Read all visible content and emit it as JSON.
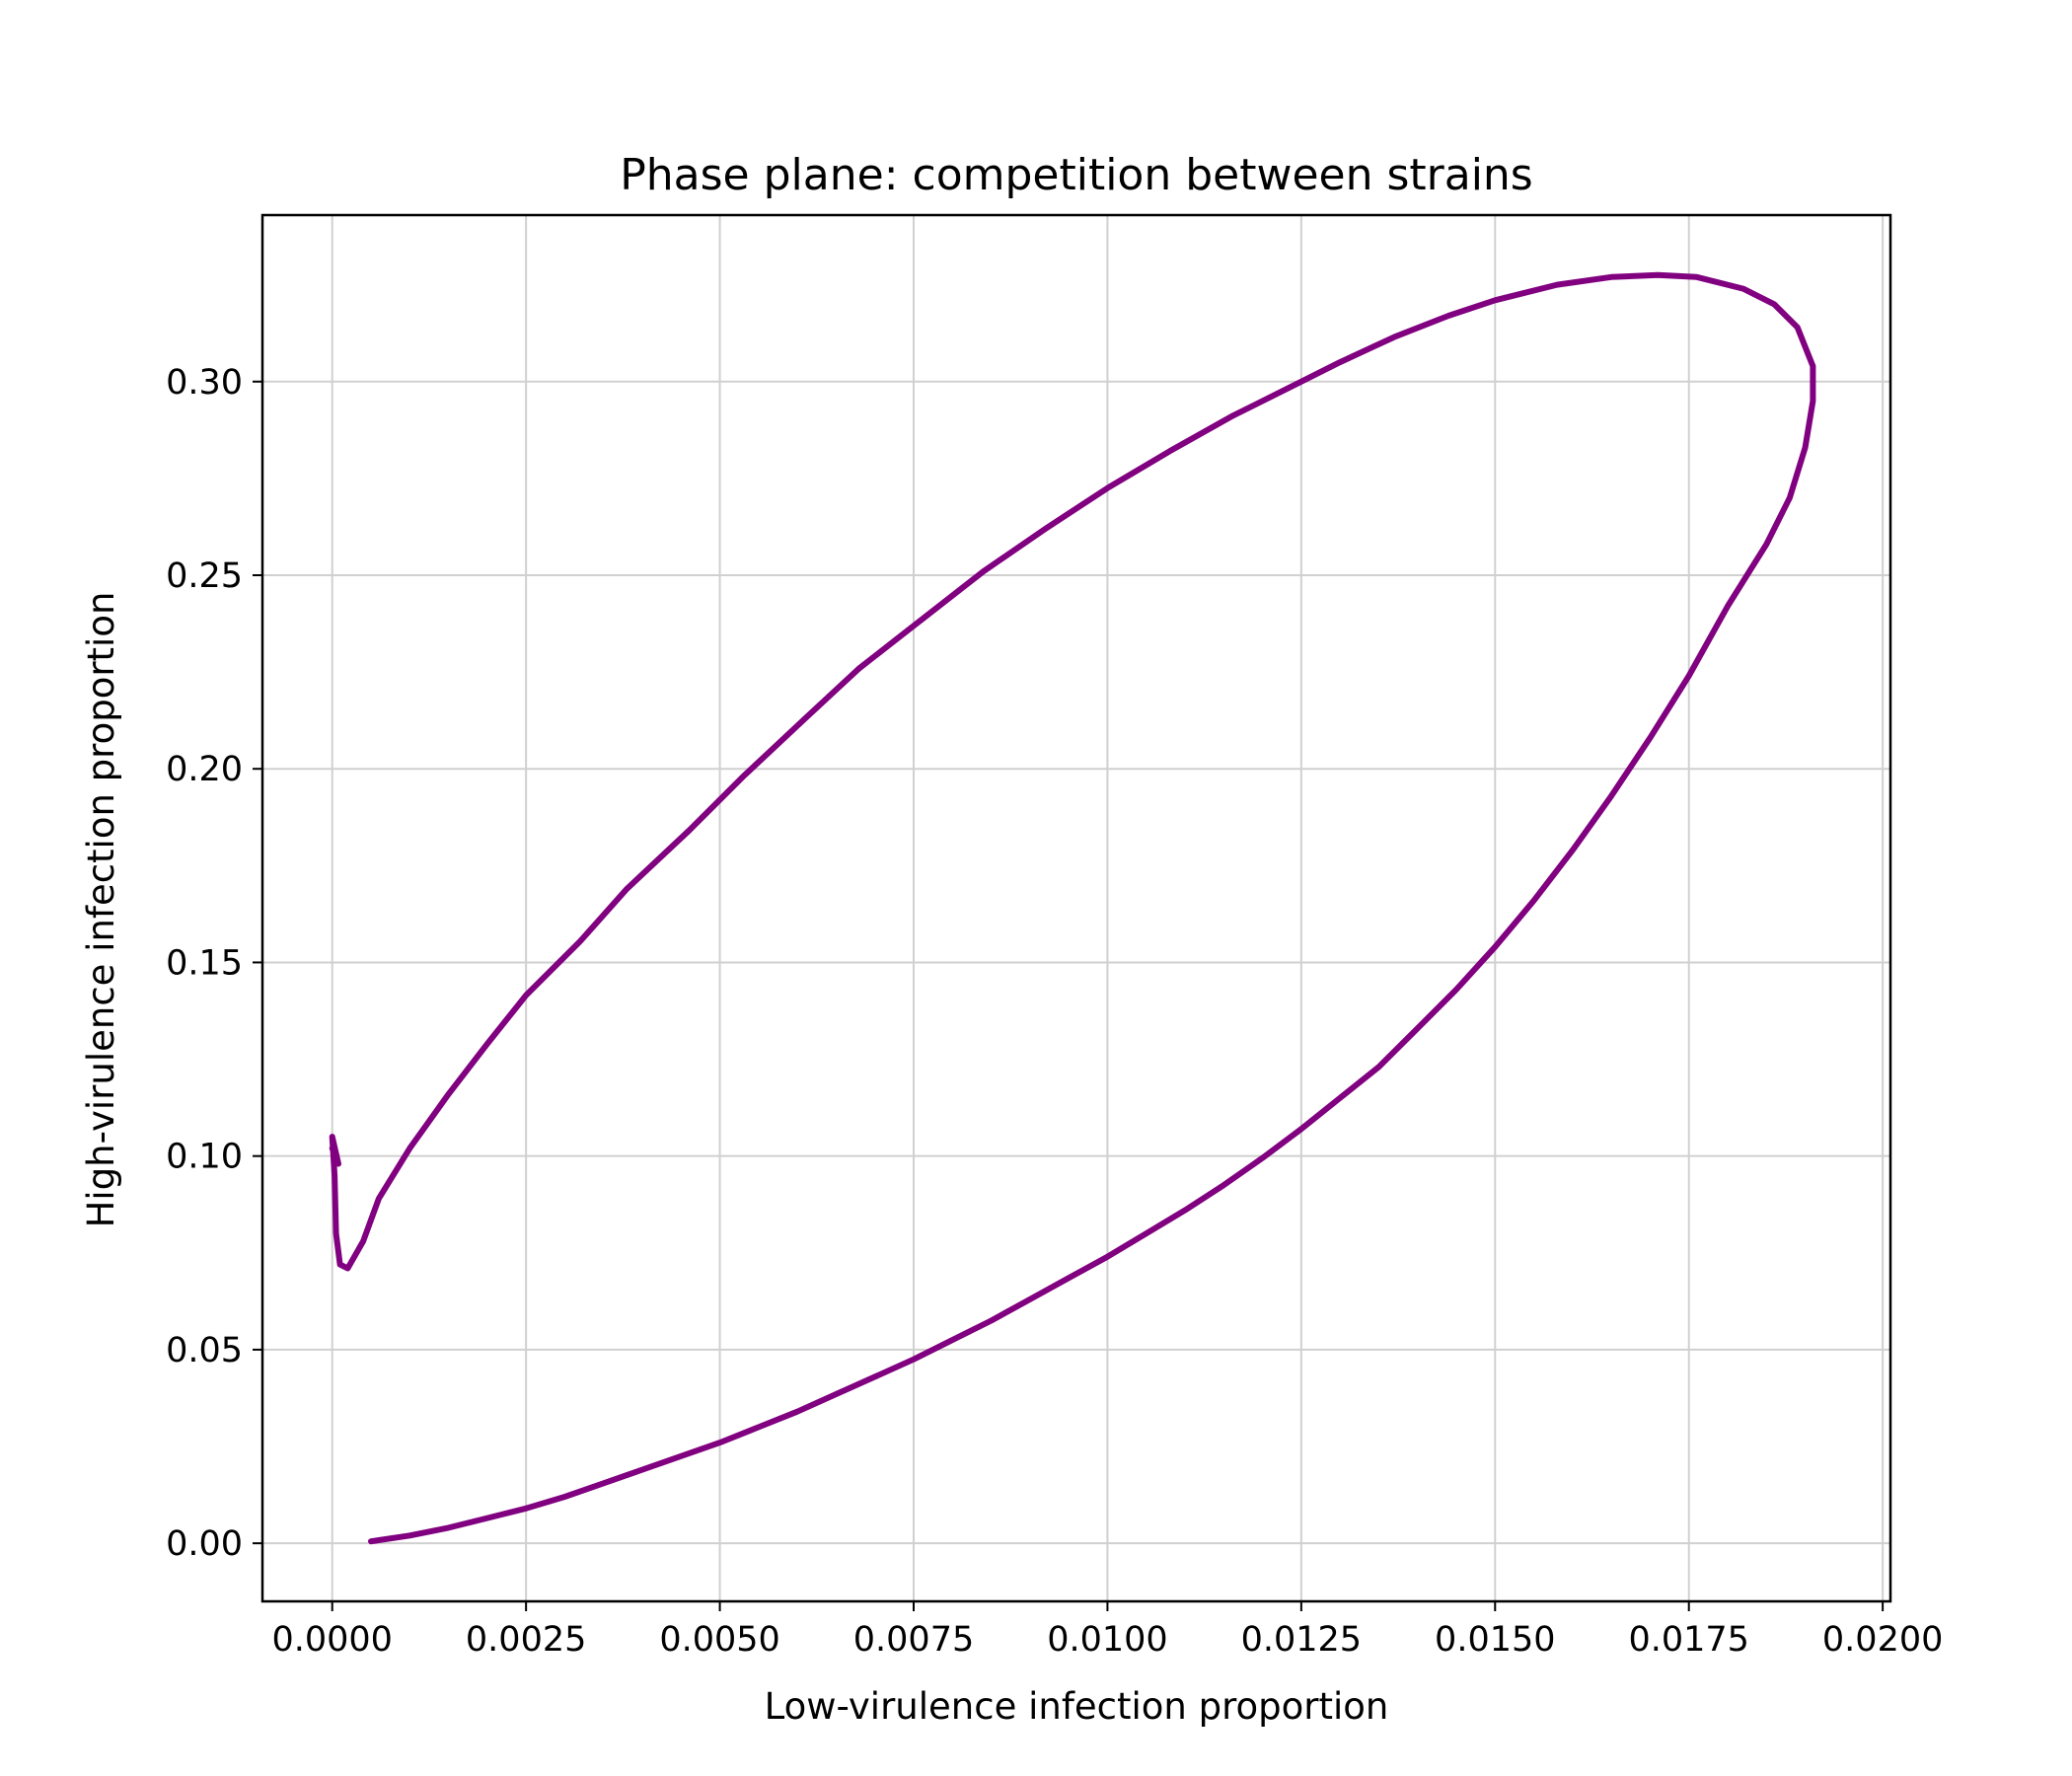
{
  "chart_data": {
    "type": "line",
    "title": "Phase plane: competition between strains",
    "xlabel": "Low-virulence infection proportion",
    "ylabel": "High-virulence infection proportion",
    "xlim": [
      -0.0009,
      0.0201
    ],
    "ylim": [
      -0.015,
      0.343
    ],
    "xticks": [
      0.0,
      0.0025,
      0.005,
      0.0075,
      0.01,
      0.0125,
      0.015,
      0.0175,
      0.02
    ],
    "xtick_labels": [
      "0.0000",
      "0.0025",
      "0.0050",
      "0.0075",
      "0.0100",
      "0.0125",
      "0.0150",
      "0.0175",
      "0.0200"
    ],
    "yticks": [
      0.0,
      0.05,
      0.1,
      0.15,
      0.2,
      0.25,
      0.3
    ],
    "ytick_labels": [
      "0.00",
      "0.05",
      "0.10",
      "0.15",
      "0.20",
      "0.25",
      "0.30"
    ],
    "grid": true,
    "colors": {
      "line": "#800080"
    },
    "series": [
      {
        "x": [
          0.0005,
          0.001,
          0.0015,
          0.002,
          0.0025,
          0.003,
          0.0035,
          0.004,
          0.0045,
          0.005,
          0.0055,
          0.006,
          0.0065,
          0.007,
          0.0075,
          0.008,
          0.0085,
          0.009,
          0.0095,
          0.01,
          0.0105,
          0.011,
          0.0115,
          0.012,
          0.0125,
          0.013,
          0.0135,
          0.014,
          0.0145,
          0.015,
          0.0155,
          0.016,
          0.0165,
          0.017,
          0.0175,
          0.018,
          0.0185,
          0.0188,
          0.019,
          0.0191,
          0.0191,
          0.0189,
          0.0186,
          0.0182,
          0.0176,
          0.0171,
          0.0165,
          0.0158,
          0.015,
          0.0144,
          0.0137,
          0.013,
          0.0124,
          0.0116,
          0.0108,
          0.01,
          0.0092,
          0.0084,
          0.0076,
          0.0068,
          0.0061,
          0.0053,
          0.0046,
          0.0038,
          0.0032,
          0.0025,
          0.002,
          0.0015,
          0.001,
          0.0006,
          0.0004,
          0.0002,
          0.0001,
          5e-05,
          3e-05,
          0.0,
          8e-05,
          0.0
        ],
        "y": [
          0.0005,
          0.002,
          0.004,
          0.0065,
          0.009,
          0.012,
          0.0155,
          0.019,
          0.0225,
          0.026,
          0.03,
          0.034,
          0.0385,
          0.043,
          0.0475,
          0.0525,
          0.0575,
          0.063,
          0.0685,
          0.074,
          0.08,
          0.086,
          0.0925,
          0.0995,
          0.107,
          0.115,
          0.123,
          0.133,
          0.143,
          0.154,
          0.166,
          0.179,
          0.193,
          0.208,
          0.224,
          0.242,
          0.258,
          0.27,
          0.283,
          0.295,
          0.304,
          0.314,
          0.32,
          0.324,
          0.327,
          0.3275,
          0.327,
          0.325,
          0.321,
          0.317,
          0.3115,
          0.305,
          0.299,
          0.291,
          0.282,
          0.2725,
          0.262,
          0.251,
          0.2385,
          0.226,
          0.213,
          0.198,
          0.184,
          0.169,
          0.1555,
          0.1415,
          0.129,
          0.116,
          0.102,
          0.089,
          0.078,
          0.071,
          0.072,
          0.08,
          0.095,
          0.105,
          0.098,
          0.102
        ]
      }
    ]
  }
}
